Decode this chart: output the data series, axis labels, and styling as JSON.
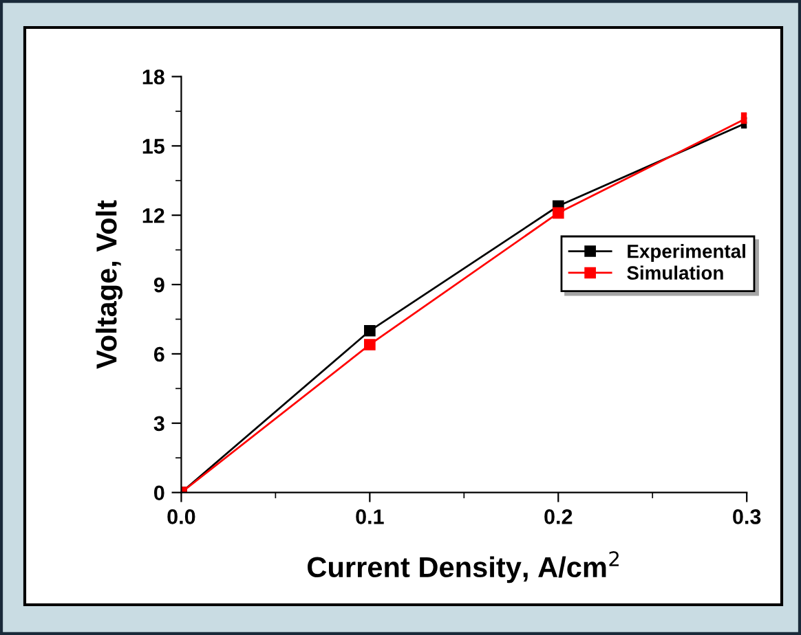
{
  "chart_data": {
    "type": "line",
    "xlabel": "Current Density, A/cm$^{2}$",
    "ylabel": "Voltage, Volt",
    "x": [
      0,
      0.1,
      0.2,
      0.3
    ],
    "series": [
      {
        "name": "Experimental",
        "color": "#000000",
        "values": [
          0,
          7.0,
          12.4,
          16.0
        ]
      },
      {
        "name": "Simulation",
        "color": "#ff0000",
        "values": [
          0,
          6.4,
          12.1,
          16.2
        ]
      }
    ],
    "xlim": [
      0,
      0.3
    ],
    "xticks": [
      {
        "value": 0,
        "label": "0.0"
      },
      0.1,
      0.2,
      0.3
    ],
    "ylim": [
      0,
      18
    ],
    "yticks": [
      0,
      3,
      6,
      9,
      12,
      15,
      18
    ],
    "marker": "square",
    "line_style": "solid",
    "legend": "right",
    "grid": false
  }
}
